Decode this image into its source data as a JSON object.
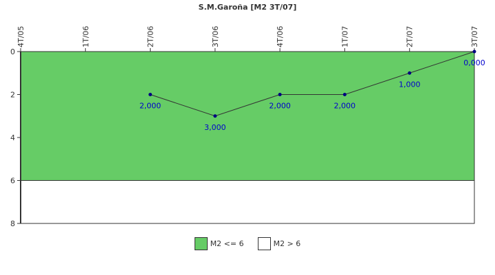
{
  "chart_data": {
    "type": "line",
    "title": "S.M.Garoña [M2 3T/07]",
    "categories": [
      "4T/05",
      "1T/06",
      "2T/06",
      "3T/06",
      "4T/06",
      "1T/07",
      "2T/07",
      "3T/07"
    ],
    "series": [
      {
        "values": [
          null,
          null,
          2,
          3,
          2,
          2,
          1,
          0
        ],
        "labels": [
          null,
          null,
          "2,000",
          "3,000",
          "2,000",
          "2,000",
          "1,000",
          "0,000"
        ],
        "color": "#000080"
      }
    ],
    "bands": [
      {
        "name": "M2 <= 6",
        "from": 0,
        "to": 6,
        "color": "#66CC66"
      },
      {
        "name": "M2 > 6",
        "from": 6,
        "to": 8,
        "color": "#FFFFFF"
      }
    ],
    "ylim": [
      0,
      8
    ],
    "y_inverted": true,
    "y_ticks": [
      0,
      2,
      4,
      6,
      8
    ],
    "xlabel": "",
    "ylabel": "",
    "x_axis_position": "top",
    "label_color": "#0000CC",
    "legend_placement": "bottom"
  },
  "legend": {
    "items": [
      {
        "label": "M2 <= 6",
        "color": "#66CC66"
      },
      {
        "label": "M2 > 6",
        "color": "#FFFFFF"
      }
    ]
  }
}
